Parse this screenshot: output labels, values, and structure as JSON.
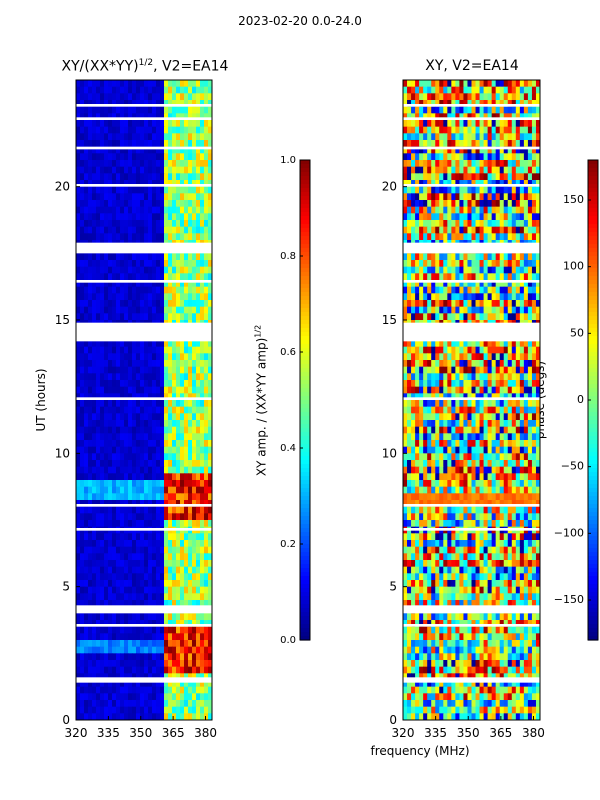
{
  "suptitle": "2023-02-20 0.0-24.0",
  "colors": {
    "jet": [
      "#00007f",
      "#0000ff",
      "#007fff",
      "#00ffff",
      "#7fff7f",
      "#ffff00",
      "#ff7f00",
      "#ff0000",
      "#7f0000"
    ],
    "background": "#ffffff",
    "axis": "#000000"
  },
  "chart_data": [
    {
      "type": "heatmap",
      "title": "XY/(XX*YY)",
      "title_sup": "1/2",
      "title_suffix": ", V2=EA14",
      "xlabel": "",
      "ylabel": "UT (hours)",
      "xlim": [
        320,
        383
      ],
      "ylim": [
        0,
        24
      ],
      "xticks": [
        320,
        335,
        350,
        365,
        380
      ],
      "yticks": [
        0,
        5,
        10,
        15,
        20
      ],
      "colorbar": {
        "label": "XY amp. / (XX*YY amp)",
        "label_sup": "1/2",
        "range": [
          0.0,
          1.0
        ],
        "ticks": [
          0.0,
          0.2,
          0.4,
          0.6,
          0.8,
          1.0
        ],
        "tick_labels": [
          "0.0",
          "0.2",
          "0.4",
          "0.6",
          "0.8",
          "1.0"
        ]
      },
      "data_gaps_hours": [
        [
          23.0,
          23.1
        ],
        [
          22.5,
          22.6
        ],
        [
          21.4,
          21.5
        ],
        [
          20.0,
          20.1
        ],
        [
          17.5,
          17.9
        ],
        [
          16.4,
          16.5
        ],
        [
          14.2,
          14.9
        ],
        [
          12.0,
          12.1
        ],
        [
          8.0,
          8.1
        ],
        [
          7.1,
          7.2
        ],
        [
          4.0,
          4.3
        ],
        [
          3.5,
          3.6
        ],
        [
          1.4,
          1.6
        ]
      ],
      "description": "Normalized XY amplitude vs frequency and time; low (~0.0-0.1) below ~360 MHz, high/variable (0.4-1.0) between 360 and 380 MHz, strong features near 2-3 h and 8-9 h"
    },
    {
      "type": "heatmap",
      "title": "XY, V2=EA14",
      "xlabel": "frequency (MHz)",
      "ylabel": "",
      "xlim": [
        320,
        383
      ],
      "ylim": [
        0,
        24
      ],
      "xticks": [
        320,
        335,
        350,
        365,
        380
      ],
      "yticks": [
        0,
        5,
        10,
        15,
        20
      ],
      "colorbar": {
        "label": "phase (degs)",
        "range": [
          -180,
          180
        ],
        "ticks": [
          -150,
          -100,
          -50,
          0,
          50,
          100,
          150
        ],
        "tick_labels": [
          "−150",
          "−100",
          "−50",
          "0",
          "50",
          "100",
          "150"
        ]
      },
      "data_gaps_hours": [
        [
          23.0,
          23.1
        ],
        [
          22.5,
          22.6
        ],
        [
          21.4,
          21.5
        ],
        [
          20.0,
          20.1
        ],
        [
          17.5,
          17.9
        ],
        [
          16.4,
          16.5
        ],
        [
          14.2,
          14.9
        ],
        [
          12.0,
          12.1
        ],
        [
          8.0,
          8.1
        ],
        [
          7.1,
          7.2
        ],
        [
          4.0,
          4.3
        ],
        [
          3.5,
          3.6
        ],
        [
          1.4,
          1.6
        ]
      ],
      "description": "XY phase vs frequency and time; noisy full-range phase values with a horizontal band near 8-8.5 h"
    }
  ]
}
